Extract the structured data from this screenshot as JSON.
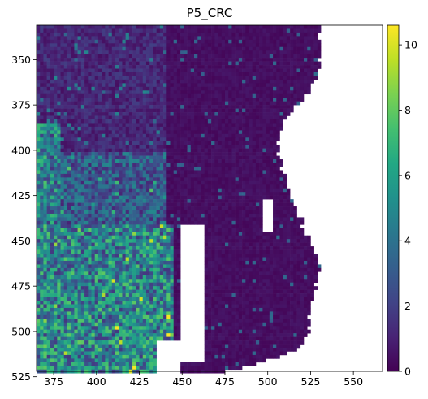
{
  "chart_data": {
    "type": "heatmap",
    "title": "P5_CRC",
    "xlabel": "",
    "ylabel": "",
    "colormap": "viridis",
    "xlim": [
      365,
      567
    ],
    "ylim": [
      522,
      331
    ],
    "x_ticks": [
      375,
      400,
      425,
      450,
      475,
      500,
      525,
      550
    ],
    "x_tick_labels": [
      "375",
      "400",
      "425",
      "450",
      "475",
      "500",
      "525",
      "550"
    ],
    "y_ticks": [
      350,
      375,
      400,
      425,
      450,
      475,
      500,
      525
    ],
    "y_tick_labels": [
      "350",
      "375",
      "400",
      "425",
      "450",
      "475",
      "500",
      "525"
    ],
    "colorbar": {
      "range": [
        0,
        10.6
      ],
      "ticks": [
        0,
        2,
        4,
        6,
        8,
        10
      ],
      "tick_labels": [
        "0",
        "2",
        "4",
        "6",
        "8",
        "10"
      ]
    },
    "tissue_outline": {
      "description": "approximate right boundary x-value per row y (data units); pixels left of boundary are tissue",
      "rows": [
        {
          "y": 331,
          "x_end": 530
        },
        {
          "y": 345,
          "x_end": 530
        },
        {
          "y": 360,
          "x_end": 528
        },
        {
          "y": 372,
          "x_end": 517
        },
        {
          "y": 382,
          "x_end": 510
        },
        {
          "y": 393,
          "x_end": 505
        },
        {
          "y": 405,
          "x_end": 507
        },
        {
          "y": 418,
          "x_end": 510
        },
        {
          "y": 430,
          "x_end": 515
        },
        {
          "y": 442,
          "x_end": 520
        },
        {
          "y": 452,
          "x_end": 525
        },
        {
          "y": 462,
          "x_end": 530
        },
        {
          "y": 470,
          "x_end": 528
        },
        {
          "y": 480,
          "x_end": 525
        },
        {
          "y": 490,
          "x_end": 524
        },
        {
          "y": 500,
          "x_end": 522
        },
        {
          "y": 508,
          "x_end": 517
        },
        {
          "y": 514,
          "x_end": 503
        },
        {
          "y": 520,
          "x_end": 478
        },
        {
          "y": 522,
          "x_end": 470
        }
      ]
    },
    "holes": [
      {
        "region": "central-gap",
        "y_range": [
          440,
          515
        ],
        "x_range": [
          449,
          462
        ]
      },
      {
        "region": "bottom-gap",
        "y_range": [
          505,
          522
        ],
        "x_range": [
          434,
          448
        ]
      },
      {
        "region": "right-slit",
        "y_range": [
          426,
          444
        ],
        "x_range": [
          497,
          501
        ]
      }
    ],
    "intensity_zones": [
      {
        "name": "lower-left-high",
        "x_range": [
          365,
          445
        ],
        "y_range": [
          440,
          522
        ],
        "mean_value": 4.8
      },
      {
        "name": "left-edge-high",
        "x_range": [
          365,
          378
        ],
        "y_range": [
          385,
          440
        ],
        "mean_value": 4.5
      },
      {
        "name": "mid-left-medium",
        "x_range": [
          378,
          440
        ],
        "y_range": [
          400,
          440
        ],
        "mean_value": 3.0
      },
      {
        "name": "upper-left-low",
        "x_range": [
          365,
          440
        ],
        "y_range": [
          331,
          400
        ],
        "mean_value": 1.2
      },
      {
        "name": "right-low",
        "x_range": [
          440,
          530
        ],
        "y_range": [
          331,
          522
        ],
        "mean_value": 0.4
      }
    ]
  }
}
